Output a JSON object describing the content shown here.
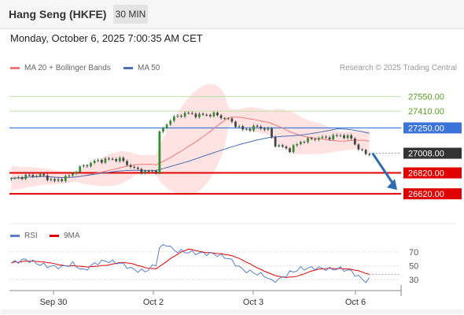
{
  "header": {
    "title": "Hang Seng (HKFE)",
    "timeframe": "30 MIN",
    "datetime": "Monday, October 6, 2025 7:00:35 AM CET"
  },
  "credit": "Research © 2025 Trading Central",
  "colors": {
    "price": "#444444",
    "ma20": "#f07878",
    "bands": "#ffd9d9",
    "ma50": "#4a6fb3",
    "resistance": "#bfe0a8",
    "pivot": "#3a74d8",
    "support": "#e00000",
    "rsi": "#5b7fcf",
    "rsi_ma": "#e00000",
    "current": "#333333",
    "arrow": "#2f6bb3"
  },
  "chart_data": [
    {
      "type": "line",
      "subtype": "candlestick price chart with Bollinger Bands",
      "legend": [
        {
          "key": "ma20",
          "label": "MA 20 + Bollinger Bands"
        },
        {
          "key": "ma50",
          "label": "MA 50"
        }
      ],
      "x_ticks": [
        "Sep 30",
        "Oct 2",
        "Oct 3",
        "Oct 6"
      ],
      "ylim": [
        26350,
        27750
      ],
      "levels": [
        {
          "label": "27550.00",
          "value": 27550,
          "kind": "resistance"
        },
        {
          "label": "27410.00",
          "value": 27410,
          "kind": "resistance"
        },
        {
          "label": "27250.00",
          "value": 27250,
          "kind": "pivot"
        },
        {
          "label": "27008.00",
          "value": 27008,
          "kind": "current"
        },
        {
          "label": "26820.00",
          "value": 26820,
          "kind": "support"
        },
        {
          "label": "26620.00",
          "value": 26620,
          "kind": "support"
        }
      ],
      "bars": 100,
      "anchors": [
        [
          0,
          26760
        ],
        [
          4,
          26790
        ],
        [
          8,
          26800
        ],
        [
          12,
          26740
        ],
        [
          16,
          26790
        ],
        [
          19,
          26870
        ],
        [
          23,
          26930
        ],
        [
          27,
          26950
        ],
        [
          30,
          26950
        ],
        [
          34,
          26860
        ],
        [
          37,
          26830
        ],
        [
          40,
          26840
        ],
        [
          41,
          27200
        ],
        [
          44,
          27330
        ],
        [
          48,
          27390
        ],
        [
          52,
          27370
        ],
        [
          56,
          27380
        ],
        [
          60,
          27330
        ],
        [
          64,
          27230
        ],
        [
          68,
          27260
        ],
        [
          71,
          27230
        ],
        [
          73,
          27090
        ],
        [
          77,
          27040
        ],
        [
          80,
          27120
        ],
        [
          84,
          27150
        ],
        [
          88,
          27160
        ],
        [
          91,
          27180
        ],
        [
          94,
          27150
        ],
        [
          96,
          27050
        ],
        [
          98,
          27000
        ],
        [
          99,
          27010
        ]
      ],
      "projection": {
        "from": 27008,
        "to": 26620
      }
    },
    {
      "type": "line",
      "subtype": "RSI",
      "legend": [
        {
          "key": "rsi",
          "label": "RSI"
        },
        {
          "key": "rsi_ma",
          "label": "9MA"
        }
      ],
      "ylim": [
        20,
        80
      ],
      "y_ticks": [
        70,
        50,
        30
      ],
      "anchors": [
        [
          0,
          54
        ],
        [
          4,
          59
        ],
        [
          8,
          52
        ],
        [
          11,
          49
        ],
        [
          14,
          48
        ],
        [
          17,
          53
        ],
        [
          20,
          43
        ],
        [
          23,
          53
        ],
        [
          26,
          57
        ],
        [
          30,
          54
        ],
        [
          34,
          44
        ],
        [
          37,
          42
        ],
        [
          40,
          52
        ],
        [
          41,
          76
        ],
        [
          43,
          81
        ],
        [
          45,
          72
        ],
        [
          48,
          70
        ],
        [
          52,
          68
        ],
        [
          56,
          67
        ],
        [
          60,
          61
        ],
        [
          64,
          44
        ],
        [
          67,
          40
        ],
        [
          70,
          36
        ],
        [
          72,
          28
        ],
        [
          74,
          30
        ],
        [
          77,
          40
        ],
        [
          80,
          46
        ],
        [
          84,
          47
        ],
        [
          88,
          45
        ],
        [
          91,
          46
        ],
        [
          94,
          42
        ],
        [
          96,
          34
        ],
        [
          98,
          28
        ],
        [
          99,
          30
        ]
      ]
    }
  ]
}
